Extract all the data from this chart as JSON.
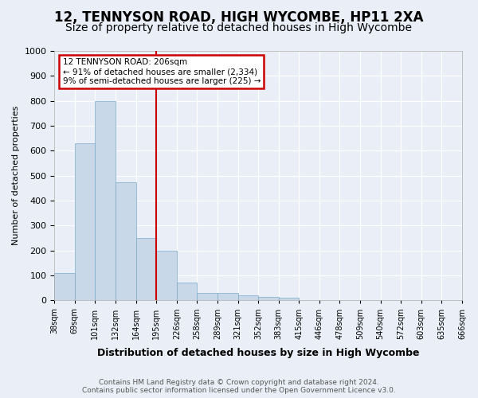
{
  "title": "12, TENNYSON ROAD, HIGH WYCOMBE, HP11 2XA",
  "subtitle": "Size of property relative to detached houses in High Wycombe",
  "xlabel": "Distribution of detached houses by size in High Wycombe",
  "ylabel": "Number of detached properties",
  "footer_line1": "Contains HM Land Registry data © Crown copyright and database right 2024.",
  "footer_line2": "Contains public sector information licensed under the Open Government Licence v3.0.",
  "tick_labels": [
    "38sqm",
    "69sqm",
    "101sqm",
    "132sqm",
    "164sqm",
    "195sqm",
    "226sqm",
    "258sqm",
    "289sqm",
    "321sqm",
    "352sqm",
    "383sqm",
    "415sqm",
    "446sqm",
    "478sqm",
    "509sqm",
    "540sqm",
    "572sqm",
    "603sqm",
    "635sqm",
    "666sqm"
  ],
  "bar_values": [
    110,
    630,
    800,
    475,
    250,
    200,
    70,
    30,
    30,
    20,
    15,
    10,
    0,
    0,
    0,
    0,
    0,
    0,
    0,
    0
  ],
  "bar_color": "#c8d8e8",
  "bar_edge_color": "#7aaac8",
  "annotation_line1": "12 TENNYSON ROAD: 206sqm",
  "annotation_line2": "← 91% of detached houses are smaller (2,334)",
  "annotation_line3": "9% of semi-detached houses are larger (225) →",
  "annotation_box_color": "#ffffff",
  "annotation_border_color": "#cc0000",
  "red_line_color": "#cc0000",
  "ylim": [
    0,
    1000
  ],
  "background_color": "#eaeff7",
  "plot_background": "#eaeff7",
  "grid_color": "#ffffff",
  "title_fontsize": 12,
  "subtitle_fontsize": 10
}
